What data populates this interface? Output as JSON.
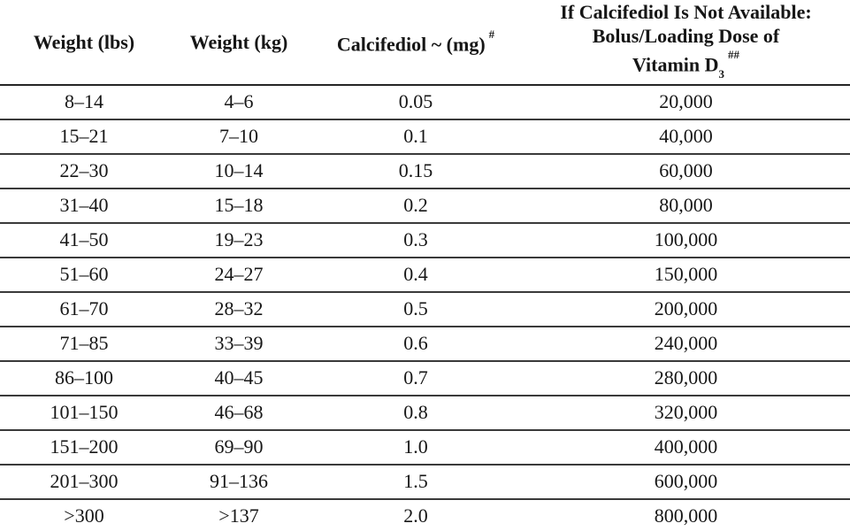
{
  "document": {
    "background_color": "#ffffff",
    "text_color": "#161616",
    "rule_color": "#3a3a3a",
    "bottom_bar_color": "#8d8d8d",
    "bottom_band_color": "#efefef"
  },
  "table": {
    "headers": {
      "weight_lbs": "Weight (lbs)",
      "weight_kg": "Weight (kg)",
      "calcifediol_main": "Calcifediol ~ (mg)",
      "calcifediol_sup": "#",
      "dose_line1": "If Calcifediol Is Not Available:",
      "dose_line2": "Bolus/Loading Dose of",
      "dose_line3_main": "Vitamin D",
      "dose_line3_sub": "3",
      "dose_line3_sup": "##"
    }
  },
  "chart_data": {
    "type": "table",
    "columns": [
      "Weight (lbs)",
      "Weight (kg)",
      "Calcifediol ~ (mg) #",
      "If Calcifediol Is Not Available: Bolus/Loading Dose of Vitamin D3 ##"
    ],
    "rows": [
      [
        "8–14",
        "4–6",
        "0.05",
        "20,000"
      ],
      [
        "15–21",
        "7–10",
        "0.1",
        "40,000"
      ],
      [
        "22–30",
        "10–14",
        "0.15",
        "60,000"
      ],
      [
        "31–40",
        "15–18",
        "0.2",
        "80,000"
      ],
      [
        "41–50",
        "19–23",
        "0.3",
        "100,000"
      ],
      [
        "51–60",
        "24–27",
        "0.4",
        "150,000"
      ],
      [
        "61–70",
        "28–32",
        "0.5",
        "200,000"
      ],
      [
        "71–85",
        "33–39",
        "0.6",
        "240,000"
      ],
      [
        "86–100",
        "40–45",
        "0.7",
        "280,000"
      ],
      [
        "101–150",
        "46–68",
        "0.8",
        "320,000"
      ],
      [
        "151–200",
        "69–90",
        "1.0",
        "400,000"
      ],
      [
        "201–300",
        "91–136",
        "1.5",
        "600,000"
      ],
      [
        ">300",
        ">137",
        "2.0",
        "800,000"
      ]
    ]
  }
}
